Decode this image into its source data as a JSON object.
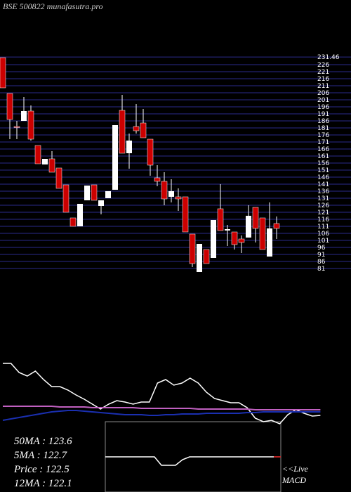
{
  "chart_data": {
    "type": "candlestick",
    "title": "BSE 500822 munafasutra.pro",
    "ylim": [
      78,
      232
    ],
    "yticks": [
      231.46,
      226,
      221,
      216,
      211,
      206,
      201,
      196,
      191,
      186,
      181,
      176,
      171,
      166,
      161,
      156,
      151,
      146,
      141,
      136,
      131,
      126,
      121,
      116,
      111,
      106,
      101,
      96,
      91,
      86,
      81
    ],
    "grid": true,
    "up_color": "#ffffff",
    "down_color": "#cc0000",
    "candles": {
      "open": [
        231,
        205.5,
        182,
        186,
        193,
        168.5,
        155,
        159,
        152.5,
        140.5,
        117,
        111,
        129.5,
        140.5,
        125.5,
        131,
        137,
        193.5,
        163,
        182,
        184.5,
        173,
        145.5,
        143,
        132,
        132,
        132,
        105.5,
        78.5,
        94.5,
        88.5,
        123.5,
        108,
        107,
        102,
        103,
        124.5,
        117,
        89.5,
        113
      ],
      "high": [
        231,
        205.5,
        186,
        203,
        197,
        168.5,
        159,
        164.5,
        152.5,
        140.5,
        117,
        127,
        140,
        140.5,
        129.5,
        136,
        183,
        204.5,
        177,
        198,
        194.5,
        173,
        154.5,
        149.5,
        144.5,
        138,
        132,
        105.5,
        98.5,
        94.5,
        115.5,
        141,
        112,
        107,
        104.5,
        126,
        124.5,
        117,
        128,
        118
      ],
      "low": [
        209.5,
        173,
        173,
        186,
        172,
        155.5,
        155,
        149.5,
        138,
        121,
        111,
        111,
        129.5,
        129.5,
        119.5,
        131,
        137,
        163,
        152,
        177,
        174,
        147,
        139.5,
        126,
        128,
        122,
        107,
        82,
        78.5,
        84.5,
        88.5,
        108,
        97,
        94.5,
        92,
        103,
        99.5,
        94.5,
        89.5,
        102
      ],
      "close": [
        209.5,
        187,
        181.5,
        193,
        173,
        155.5,
        159,
        149.5,
        138,
        121,
        111,
        127,
        140,
        129.5,
        129.5,
        136,
        183,
        163,
        172,
        179,
        174,
        154.5,
        143,
        130.5,
        136,
        130.5,
        107,
        84.5,
        98.5,
        84.5,
        115.5,
        108,
        109,
        98,
        99.5,
        118.5,
        109.5,
        94.5,
        109.5,
        109.5
      ]
    },
    "indicators": {
      "ylim": [
        0,
        100
      ],
      "series": [
        {
          "color": "#ffffff",
          "values": [
            93,
            93,
            80,
            75,
            82,
            70,
            60,
            60,
            55,
            48,
            42,
            35,
            28,
            35,
            40,
            38,
            35,
            38,
            38,
            65,
            70,
            62,
            65,
            72,
            65,
            52,
            43,
            40,
            37,
            37,
            30,
            15,
            10,
            12,
            7,
            20,
            27,
            22,
            18,
            19
          ]
        },
        {
          "color": "#c060c0",
          "values": [
            32,
            32,
            32,
            32,
            32,
            32,
            32,
            31,
            31,
            31,
            31,
            30,
            30,
            30,
            30,
            30,
            30,
            29,
            29,
            29,
            29,
            29,
            29,
            29,
            28,
            28,
            28,
            28,
            28,
            28,
            28,
            27,
            27,
            27,
            27,
            27,
            27,
            27,
            27,
            27
          ]
        },
        {
          "color": "#1a2fb0",
          "values": [
            12,
            14,
            16,
            18,
            20,
            22,
            24,
            25,
            26,
            26,
            25,
            24,
            23,
            22,
            21,
            20,
            20,
            20,
            19,
            19,
            20,
            20,
            21,
            21,
            21,
            22,
            22,
            22,
            22,
            22,
            23,
            23,
            24,
            24,
            24,
            24,
            24,
            24,
            24,
            24
          ]
        }
      ]
    },
    "macd": {
      "ylim": [
        -10,
        10
      ],
      "series": [
        {
          "color": "#ffffff",
          "values": [
            0,
            0,
            0,
            0,
            0,
            0,
            0,
            0,
            -3,
            -3,
            -3,
            -1,
            0,
            0,
            0,
            0,
            0,
            0,
            0,
            0,
            0,
            0,
            0,
            0,
            0,
            0
          ]
        },
        {
          "color": "#cc0000",
          "values": [
            null,
            null,
            null,
            null,
            null,
            null,
            null,
            null,
            null,
            null,
            null,
            null,
            null,
            null,
            null,
            null,
            null,
            null,
            null,
            null,
            null,
            null,
            null,
            null,
            0,
            0
          ]
        }
      ]
    },
    "labels": [
      "50MA : 123.6",
      "5MA : 122.7",
      "Price  : 122.5",
      "12MA : 122.1"
    ],
    "live": "<<Live",
    "macd_label": "MACD"
  }
}
